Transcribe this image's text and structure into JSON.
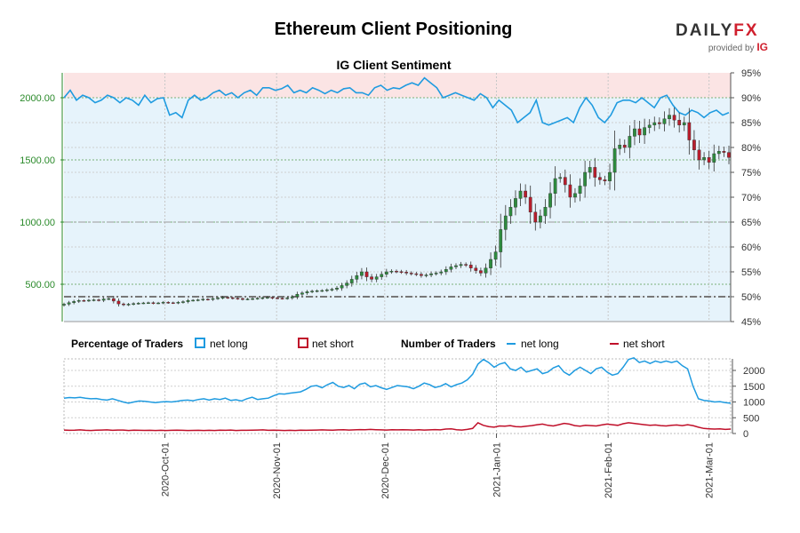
{
  "header": {
    "title": "Ethereum Client Positioning",
    "logo_brand_left": "DAILY",
    "logo_brand_right": "FX",
    "logo_provided": "provided by",
    "logo_ig": "IG"
  },
  "colors": {
    "long_blue": "#1f9be0",
    "short_red": "#c0102a",
    "candle_up": "#2e8b3e",
    "candle_down": "#b81d2c",
    "price_axis": "#2a8a2a",
    "band_pink": "#fbe4e4",
    "band_blue": "#e6f3fb"
  },
  "chart_data": [
    {
      "type": "candlestick",
      "title": "IG Client Sentiment",
      "left_axis": {
        "ticks": [
          500,
          1000,
          1500,
          2000
        ],
        "tick_labels": [
          "500.00",
          "1000.00",
          "1500.00",
          "2000.00"
        ]
      },
      "right_axis": {
        "ticks": [
          45,
          50,
          55,
          60,
          65,
          70,
          75,
          80,
          85,
          90,
          95
        ],
        "tick_labels": [
          "45%",
          "50%",
          "55%",
          "60%",
          "65%",
          "70%",
          "75%",
          "80%",
          "85%",
          "90%",
          "95%"
        ]
      },
      "x_dates": [
        "2020-10-01",
        "2020-11-01",
        "2020-12-01",
        "2021-01-01",
        "2021-02-01",
        "2021-03-01"
      ],
      "reference_lines": {
        "pct_50": 50,
        "pct_65": 65
      },
      "close_price": [
        340,
        352,
        362,
        370,
        368,
        372,
        375,
        371,
        382,
        385,
        365,
        342,
        335,
        340,
        345,
        348,
        350,
        352,
        348,
        350,
        355,
        352,
        350,
        355,
        360,
        370,
        372,
        375,
        380,
        378,
        385,
        390,
        395,
        392,
        388,
        385,
        380,
        382,
        385,
        388,
        392,
        395,
        390,
        388,
        386,
        390,
        400,
        420,
        430,
        440,
        445,
        448,
        450,
        455,
        460,
        470,
        490,
        510,
        540,
        570,
        600,
        560,
        540,
        560,
        580,
        600,
        605,
        602,
        598,
        590,
        585,
        580,
        570,
        575,
        585,
        590,
        600,
        620,
        640,
        650,
        660,
        655,
        630,
        610,
        590,
        630,
        700,
        760,
        940,
        1050,
        1120,
        1190,
        1250,
        1200,
        1080,
        1000,
        1050,
        1120,
        1230,
        1350,
        1360,
        1300,
        1200,
        1230,
        1290,
        1400,
        1440,
        1360,
        1340,
        1330,
        1400,
        1590,
        1620,
        1600,
        1690,
        1750,
        1700,
        1760,
        1780,
        1800,
        1790,
        1830,
        1860,
        1820,
        1780,
        1800,
        1660,
        1580,
        1500,
        1520,
        1480,
        1550,
        1570,
        1560,
        1520
      ],
      "long_pct": [
        90.0,
        91.5,
        89.5,
        90.5,
        90.0,
        89.0,
        89.5,
        90.5,
        90.0,
        89.0,
        90.0,
        89.5,
        88.5,
        90.5,
        89.0,
        89.8,
        90.0,
        86.5,
        87.0,
        86.0,
        89.5,
        90.5,
        89.5,
        90.0,
        91.0,
        91.5,
        90.5,
        91.0,
        90.0,
        91.0,
        91.5,
        90.5,
        92.0,
        92.0,
        91.5,
        91.8,
        92.5,
        91.0,
        91.5,
        91.0,
        92.0,
        91.5,
        90.8,
        91.5,
        91.0,
        91.8,
        92.0,
        91.0,
        91.0,
        90.5,
        92.0,
        92.5,
        91.5,
        92.0,
        91.8,
        92.5,
        93.0,
        92.5,
        94.0,
        93.0,
        92.0,
        90.0,
        90.5,
        91.0,
        90.5,
        90.0,
        89.5,
        90.8,
        90.0,
        88.0,
        89.5,
        88.5,
        87.5,
        85.0,
        86.0,
        87.0,
        89.5,
        85.0,
        84.5,
        85.0,
        85.5,
        86.0,
        85.0,
        88.0,
        90.0,
        88.5,
        86.0,
        85.0,
        86.5,
        89.0,
        89.5,
        89.5,
        89.0,
        90.0,
        89.0,
        88.0,
        90.0,
        90.5,
        88.5,
        87.0,
        86.5,
        87.5,
        87.0,
        86.0,
        87.0,
        87.5,
        86.5,
        87.0
      ]
    },
    {
      "type": "line",
      "legend_pct_title": "Percentage of Traders",
      "legend_num_title": "Number of Traders",
      "legend_items": {
        "net_long": "net long",
        "net_short": "net short"
      },
      "y_ticks": [
        0,
        500,
        1000,
        1500,
        2000
      ],
      "y_tick_labels": [
        "0",
        "500",
        "1000",
        "1500",
        "2000"
      ],
      "x_tick_labels": [
        "2020-Oct-01",
        "2020-Nov-01",
        "2020-Dec-01",
        "2021-Jan-01",
        "2021-Feb-01",
        "2021-Mar-01"
      ],
      "x_tick_dates": [
        "2020-10-01",
        "2020-11-01",
        "2020-12-01",
        "2021-01-01",
        "2021-02-01",
        "2021-03-01"
      ],
      "series": [
        {
          "name": "net long",
          "values": [
            1120,
            1140,
            1130,
            1150,
            1120,
            1100,
            1110,
            1080,
            1060,
            1100,
            1050,
            1000,
            960,
            1000,
            1030,
            1020,
            1000,
            980,
            1000,
            1010,
            1000,
            1020,
            1050,
            1060,
            1040,
            1080,
            1100,
            1060,
            1100,
            1080,
            1120,
            1050,
            1070,
            1030,
            1100,
            1150,
            1080,
            1100,
            1120,
            1200,
            1260,
            1250,
            1280,
            1300,
            1320,
            1400,
            1500,
            1520,
            1450,
            1550,
            1620,
            1500,
            1460,
            1520,
            1420,
            1560,
            1600,
            1480,
            1520,
            1450,
            1400,
            1460,
            1520,
            1500,
            1480,
            1420,
            1500,
            1600,
            1550,
            1460,
            1500,
            1580,
            1480,
            1550,
            1600,
            1700,
            1880,
            2200,
            2350,
            2250,
            2100,
            2200,
            2250,
            2050,
            2000,
            2100,
            1950,
            2000,
            2050,
            1900,
            1950,
            2080,
            2150,
            1950,
            1850,
            2000,
            2100,
            2000,
            1900,
            2050,
            2100,
            1950,
            1850,
            1900,
            2100,
            2350,
            2400,
            2250,
            2300,
            2220,
            2300,
            2250,
            2300,
            2250,
            2300,
            2150,
            2050,
            1500,
            1100,
            1050,
            1030,
            1000,
            1010,
            980,
            960
          ]
        },
        {
          "name": "net short",
          "values": [
            110,
            100,
            105,
            115,
            100,
            95,
            105,
            110,
            115,
            100,
            110,
            110,
            95,
            105,
            100,
            98,
            100,
            95,
            100,
            95,
            100,
            105,
            100,
            95,
            98,
            100,
            95,
            100,
            95,
            105,
            100,
            110,
            95,
            100,
            100,
            105,
            110,
            115,
            100,
            105,
            100,
            95,
            100,
            95,
            105,
            100,
            105,
            110,
            115,
            110,
            105,
            115,
            120,
            110,
            115,
            125,
            120,
            130,
            120,
            115,
            110,
            120,
            115,
            120,
            115,
            110,
            120,
            110,
            115,
            125,
            115,
            140,
            150,
            120,
            110,
            130,
            160,
            340,
            260,
            220,
            200,
            240,
            230,
            250,
            220,
            210,
            230,
            250,
            280,
            300,
            260,
            240,
            280,
            320,
            300,
            250,
            230,
            260,
            250,
            240,
            270,
            300,
            280,
            260,
            310,
            340,
            320,
            300,
            280,
            260,
            270,
            250,
            240,
            260,
            270,
            250,
            280,
            250,
            200,
            160,
            150,
            140,
            150,
            130,
            140
          ]
        }
      ]
    }
  ]
}
